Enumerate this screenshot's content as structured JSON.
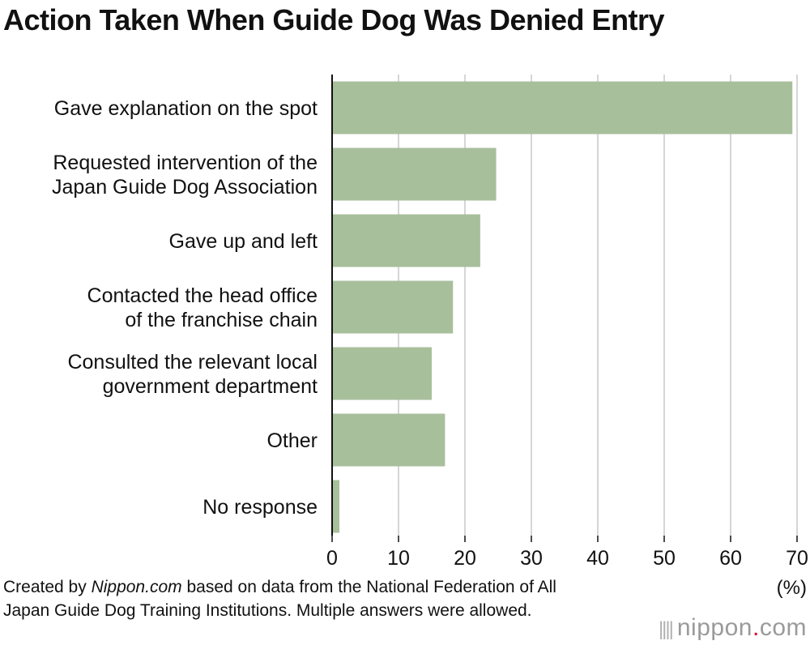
{
  "title": "Action Taken When Guide Dog Was Denied Entry",
  "unit_label": "(%)",
  "note": {
    "prefix": "Created by ",
    "site": "Nippon.com",
    "suffix": " based on data from the National Federation of All Japan Guide Dog Training Institutions. Multiple answers were allowed."
  },
  "logo": {
    "name": "nippon",
    "dot": ".",
    "tld": "com"
  },
  "colors": {
    "bar": "#a8bf9c",
    "grid": "#c8c8c8",
    "axis": "#111111",
    "logo_dot": "#e0002a"
  },
  "chart_data": {
    "type": "bar",
    "orientation": "horizontal",
    "categories": [
      [
        "Gave explanation on the spot"
      ],
      [
        "Requested intervention of the",
        "Japan Guide Dog Association"
      ],
      [
        "Gave up and left"
      ],
      [
        "Contacted the head office",
        "of the franchise chain"
      ],
      [
        "Consulted the relevant local",
        "government department"
      ],
      [
        "Other"
      ],
      [
        "No response"
      ]
    ],
    "values": [
      69.3,
      24.7,
      22.3,
      18.2,
      15.0,
      17.0,
      1.1
    ],
    "xlim": [
      0,
      70
    ],
    "xticks": [
      0,
      10,
      20,
      30,
      40,
      50,
      60,
      70
    ],
    "xlabel": "(%)",
    "grid": "vertical"
  }
}
